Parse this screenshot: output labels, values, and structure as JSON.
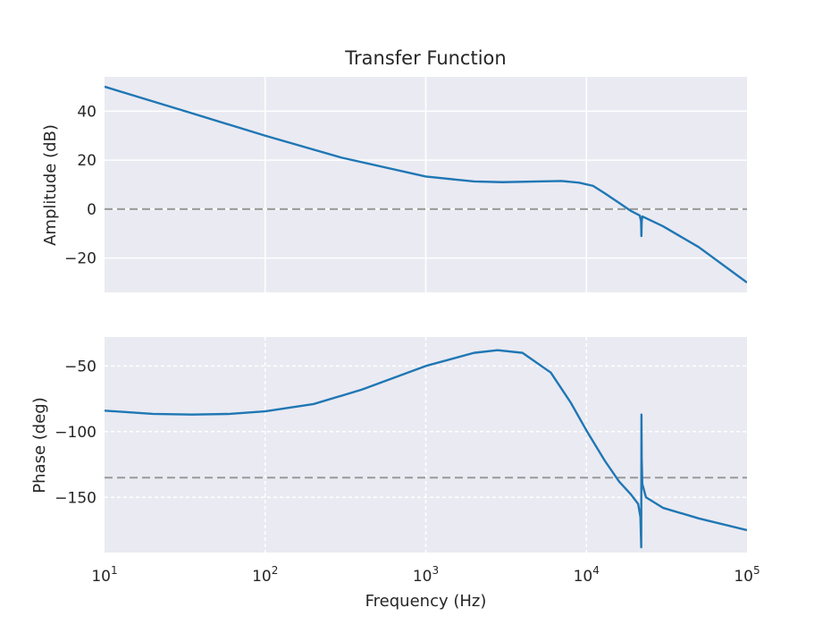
{
  "chart_data": [
    {
      "type": "line",
      "title": "Transfer Function",
      "xlabel": "",
      "ylabel": "Amplitude (dB)",
      "xscale": "log",
      "xlim": [
        10,
        100000
      ],
      "ylim": [
        -34,
        54
      ],
      "yticks": [
        40,
        20,
        0,
        -20
      ],
      "ytick_labels": [
        "40",
        "20",
        "0",
        "−20"
      ],
      "grid": "solid",
      "reference_line": {
        "y": 0,
        "style": "dashed",
        "color": "#999999"
      },
      "series": [
        {
          "color": "#1f77b4",
          "points": [
            [
              10,
              50
            ],
            [
              30,
              40.5
            ],
            [
              100,
              30
            ],
            [
              300,
              21
            ],
            [
              1000,
              13.3
            ],
            [
              2000,
              11.3
            ],
            [
              3000,
              11
            ],
            [
              5000,
              11.3
            ],
            [
              7000,
              11.5
            ],
            [
              9000,
              10.8
            ],
            [
              11000,
              9.5
            ],
            [
              13000,
              6.5
            ],
            [
              16000,
              2.5
            ],
            [
              19000,
              -0.8
            ],
            [
              21500,
              -2.6
            ],
            [
              21900,
              -5
            ],
            [
              22000,
              -11
            ],
            [
              22100,
              -5
            ],
            [
              22300,
              -3
            ],
            [
              30000,
              -7
            ],
            [
              50000,
              -15.5
            ],
            [
              100000,
              -30
            ]
          ]
        }
      ]
    },
    {
      "type": "line",
      "title": "",
      "xlabel": "Frequency (Hz)",
      "ylabel": "Phase (deg)",
      "xscale": "log",
      "xlim": [
        10,
        100000
      ],
      "ylim": [
        -192,
        -28
      ],
      "yticks": [
        -50,
        -100,
        -150
      ],
      "ytick_labels": [
        "−50",
        "−100",
        "−150"
      ],
      "xticks": [
        10,
        100,
        1000,
        10000,
        100000
      ],
      "xtick_labels": [
        {
          "base": "10",
          "exp": "1"
        },
        {
          "base": "10",
          "exp": "2"
        },
        {
          "base": "10",
          "exp": "3"
        },
        {
          "base": "10",
          "exp": "4"
        },
        {
          "base": "10",
          "exp": "5"
        }
      ],
      "grid": "dashed",
      "reference_line": {
        "y": -135,
        "style": "dashed",
        "color": "#999999"
      },
      "series": [
        {
          "color": "#1f77b4",
          "points": [
            [
              10,
              -84
            ],
            [
              20,
              -86.5
            ],
            [
              35,
              -87
            ],
            [
              60,
              -86.5
            ],
            [
              100,
              -84.5
            ],
            [
              200,
              -79
            ],
            [
              400,
              -68
            ],
            [
              1000,
              -50
            ],
            [
              2000,
              -40
            ],
            [
              2800,
              -38
            ],
            [
              4000,
              -40
            ],
            [
              6000,
              -55
            ],
            [
              8000,
              -78
            ],
            [
              10000,
              -99
            ],
            [
              13000,
              -122
            ],
            [
              16000,
              -138
            ],
            [
              19000,
              -148
            ],
            [
              21000,
              -155
            ],
            [
              21700,
              -165
            ],
            [
              21950,
              -188
            ],
            [
              22020,
              -87
            ],
            [
              22100,
              -120
            ],
            [
              22300,
              -140
            ],
            [
              23500,
              -150
            ],
            [
              30000,
              -158
            ],
            [
              50000,
              -166
            ],
            [
              100000,
              -175
            ]
          ]
        }
      ]
    }
  ]
}
